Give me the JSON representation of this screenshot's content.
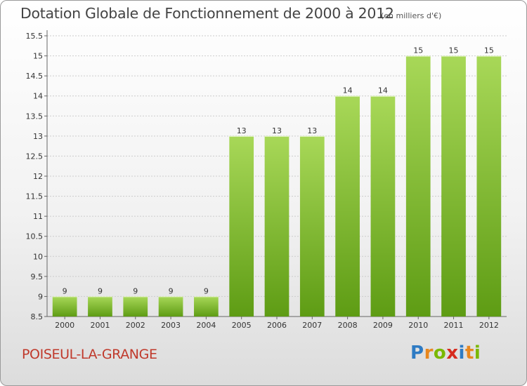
{
  "header": {
    "title": "Dotation Globale de Fonctionnement de 2000 à 2012",
    "subtitle": "(en milliers d'€)"
  },
  "footer": {
    "town": "POISEUL-LA-GRANGE",
    "logo_letters": [
      "P",
      "r",
      "o",
      "x",
      "i",
      "t",
      "i"
    ],
    "logo_colors": [
      "#2e7bc4",
      "#e8871e",
      "#7ab800",
      "#d62b1e",
      "#2e7bc4",
      "#e8871e",
      "#7ab800"
    ]
  },
  "colors": {
    "bar_light": "#a8d858",
    "bar_dark": "#5e9c14",
    "gridline": "#cccccc"
  },
  "chart_data": {
    "type": "bar",
    "title": "Dotation Globale de Fonctionnement de 2000 à 2012",
    "subtitle": "(en milliers d'€)",
    "categories": [
      "2000",
      "2001",
      "2002",
      "2003",
      "2004",
      "2005",
      "2006",
      "2007",
      "2008",
      "2009",
      "2010",
      "2011",
      "2012"
    ],
    "values": [
      9,
      9,
      9,
      9,
      9,
      13,
      13,
      13,
      14,
      14,
      15,
      15,
      15
    ],
    "data_labels": [
      "9",
      "9",
      "9",
      "9",
      "9",
      "13",
      "13",
      "13",
      "14",
      "14",
      "15",
      "15",
      "15"
    ],
    "ylim": [
      8.5,
      15.5
    ],
    "yticks": [
      8.5,
      9,
      9.5,
      10,
      10.5,
      11,
      11.5,
      12,
      12.5,
      13,
      13.5,
      14,
      14.5,
      15,
      15.5
    ],
    "ytick_labels": [
      "8.5",
      "9",
      "9.5",
      "10",
      "10.5",
      "11",
      "11.5",
      "12",
      "12.5",
      "13",
      "13.5",
      "14",
      "14.5",
      "15",
      "15.5"
    ],
    "grid": true,
    "legend": "none"
  }
}
